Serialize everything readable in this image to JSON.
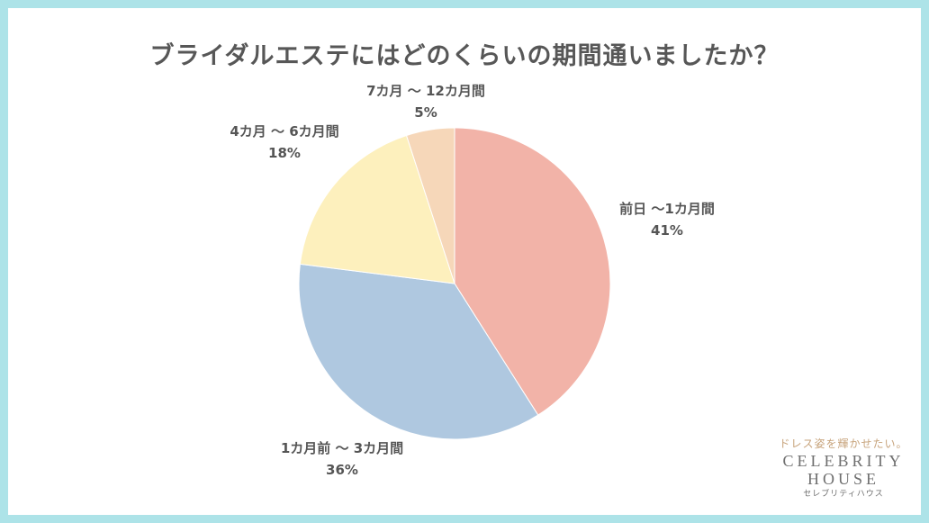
{
  "title": "ブライダルエステにはどのくらいの期間通いましたか？",
  "chart_data": {
    "type": "pie",
    "title": "ブライダルエステにはどのくらいの期間通いましたか？",
    "slices": [
      {
        "label": "前日 〜1カ月間",
        "value": 41,
        "value_label": "41%",
        "color": "#f2b3a8"
      },
      {
        "label": "1カ月前 〜 3カ月間",
        "value": 36,
        "value_label": "36%",
        "color": "#afc8e0"
      },
      {
        "label": "4カ月 〜 6カ月間",
        "value": 18,
        "value_label": "18%",
        "color": "#fdf0bd"
      },
      {
        "label": "7カ月 〜 12カ月間",
        "value": 5,
        "value_label": "5%",
        "color": "#f6d7b9"
      }
    ],
    "start": "top",
    "direction": "clockwise",
    "legend": "none"
  },
  "brand": {
    "tagline": "ドレス姿を輝かせたい。",
    "name_line1": "CELEBRITY",
    "name_line2": "HOUSE",
    "kana": "セレブリティハウス"
  }
}
